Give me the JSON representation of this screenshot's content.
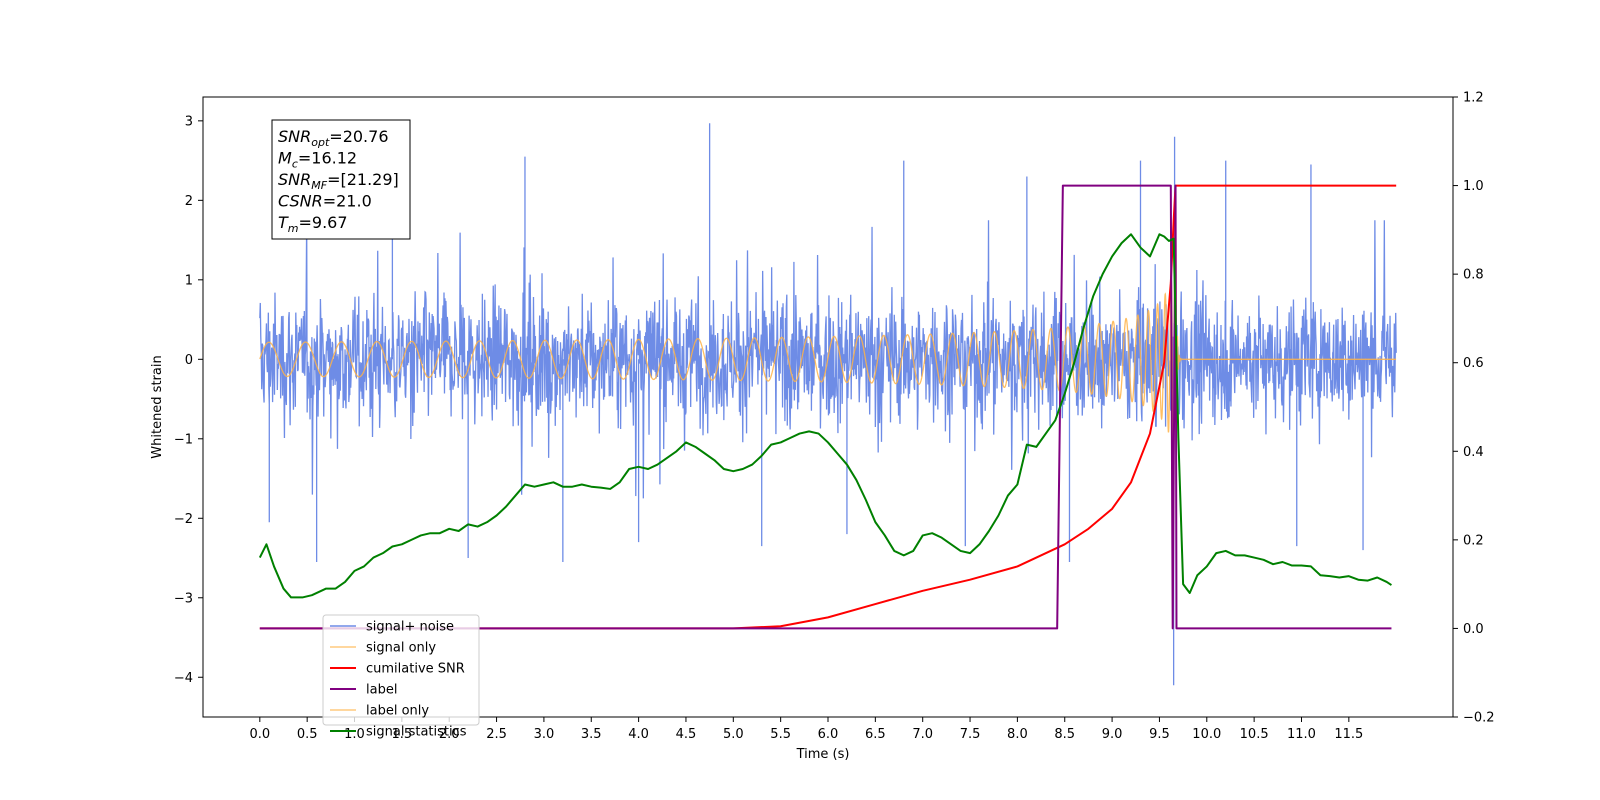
{
  "chart_data": {
    "type": "line",
    "xlabel": "Time (s)",
    "ylabel": "Whitened strain",
    "xlim": [
      -0.6,
      12.6
    ],
    "ylim": [
      -4.5,
      3.3
    ],
    "y2lim": [
      -0.2,
      1.2
    ],
    "grid": false,
    "legend_position": "lower-left",
    "x_ticks": [
      "0.0",
      "0.5",
      "1.0",
      "1.5",
      "2.0",
      "2.5",
      "3.0",
      "3.5",
      "4.0",
      "4.5",
      "5.0",
      "5.5",
      "6.0",
      "6.5",
      "7.0",
      "7.5",
      "8.0",
      "8.5",
      "9.0",
      "9.5",
      "10.0",
      "10.5",
      "11.0",
      "11.5"
    ],
    "y_ticks": [
      "3",
      "2",
      "1",
      "0",
      "−1",
      "−2",
      "−3",
      "−4"
    ],
    "y2_ticks": [
      "1.2",
      "1.0",
      "0.8",
      "0.6",
      "0.4",
      "0.2",
      "0.0",
      "−0.2"
    ],
    "annotation": [
      {
        "sym": "SNR",
        "sub": "opt",
        "val": "=20.76"
      },
      {
        "sym": "M",
        "sub": "c",
        "val": "=16.12"
      },
      {
        "sym": "SNR",
        "sub": "MF",
        "val": "=[21.29]"
      },
      {
        "sym": "CSNR",
        "sub": "",
        "val": "=21.0"
      },
      {
        "sym": "T",
        "sub": "m",
        "val": "=9.67"
      }
    ],
    "series": [
      {
        "name": "signal+ noise",
        "color": "#6e8ce6",
        "axis": "left",
        "kind": "noise",
        "x_range": [
          0.0,
          12.0
        ],
        "band": [
          -1.4,
          1.4
        ],
        "outliers": [
          {
            "x": 0.1,
            "y": -2.05
          },
          {
            "x": 0.6,
            "y": -2.55
          },
          {
            "x": 1.4,
            "y": 2.35
          },
          {
            "x": 2.2,
            "y": -2.5
          },
          {
            "x": 2.8,
            "y": 2.55
          },
          {
            "x": 3.2,
            "y": -2.55
          },
          {
            "x": 4.0,
            "y": -2.3
          },
          {
            "x": 4.75,
            "y": 2.97
          },
          {
            "x": 5.3,
            "y": -2.35
          },
          {
            "x": 6.2,
            "y": -2.2
          },
          {
            "x": 6.8,
            "y": 2.5
          },
          {
            "x": 7.45,
            "y": -2.35
          },
          {
            "x": 8.1,
            "y": 2.3
          },
          {
            "x": 8.55,
            "y": -2.55
          },
          {
            "x": 9.3,
            "y": 2.5
          },
          {
            "x": 9.65,
            "y": -4.1
          },
          {
            "x": 9.66,
            "y": 2.8
          },
          {
            "x": 10.2,
            "y": 2.5
          },
          {
            "x": 10.95,
            "y": -2.35
          },
          {
            "x": 11.1,
            "y": 2.45
          },
          {
            "x": 11.65,
            "y": -2.4
          }
        ]
      },
      {
        "name": "signal only",
        "color": "#ffb347",
        "axis": "left",
        "kind": "chirp",
        "x_range": [
          0.0,
          12.0
        ],
        "merger": 9.67,
        "peak_amplitude": 2.3
      },
      {
        "name": "cumilative SNR",
        "color": "#ff0000",
        "axis": "right",
        "kind": "line",
        "x": [
          0.0,
          5.0,
          5.5,
          6.0,
          6.5,
          7.0,
          7.5,
          8.0,
          8.5,
          8.75,
          9.0,
          9.2,
          9.4,
          9.55,
          9.62,
          9.65,
          9.67,
          12.0
        ],
        "y": [
          0.0,
          0.0,
          0.005,
          0.025,
          0.055,
          0.085,
          0.11,
          0.14,
          0.19,
          0.225,
          0.27,
          0.33,
          0.44,
          0.6,
          0.78,
          0.92,
          1.0,
          1.0
        ]
      },
      {
        "name": "label",
        "color": "#800080",
        "axis": "right",
        "kind": "line",
        "x": [
          0.0,
          8.42,
          8.48,
          9.62,
          9.64,
          9.67,
          9.68,
          11.95
        ],
        "y": [
          0.0,
          0.0,
          1.0,
          1.0,
          0.0,
          1.0,
          0.0,
          0.0
        ]
      },
      {
        "name": "label only",
        "color": "#ffb347",
        "axis": "left",
        "kind": "legend-only"
      },
      {
        "name": "signal statistics",
        "color": "#008000",
        "axis": "right",
        "kind": "line",
        "x": [
          0.0,
          0.07,
          0.15,
          0.25,
          0.33,
          0.45,
          0.55,
          0.7,
          0.8,
          0.9,
          1.0,
          1.1,
          1.2,
          1.3,
          1.4,
          1.5,
          1.6,
          1.7,
          1.8,
          1.9,
          2.0,
          2.1,
          2.2,
          2.3,
          2.4,
          2.5,
          2.6,
          2.7,
          2.8,
          2.9,
          3.0,
          3.1,
          3.2,
          3.3,
          3.4,
          3.5,
          3.6,
          3.7,
          3.8,
          3.9,
          4.0,
          4.1,
          4.2,
          4.3,
          4.4,
          4.5,
          4.6,
          4.7,
          4.8,
          4.9,
          5.0,
          5.1,
          5.2,
          5.3,
          5.4,
          5.5,
          5.6,
          5.7,
          5.8,
          5.9,
          6.0,
          6.1,
          6.2,
          6.3,
          6.4,
          6.5,
          6.6,
          6.7,
          6.8,
          6.9,
          7.0,
          7.1,
          7.2,
          7.3,
          7.4,
          7.5,
          7.6,
          7.7,
          7.8,
          7.9,
          8.0,
          8.1,
          8.2,
          8.3,
          8.4,
          8.5,
          8.6,
          8.7,
          8.8,
          8.9,
          9.0,
          9.1,
          9.2,
          9.3,
          9.4,
          9.5,
          9.55,
          9.6,
          9.65,
          9.7,
          9.75,
          9.82,
          9.9,
          10.0,
          10.1,
          10.2,
          10.3,
          10.4,
          10.5,
          10.6,
          10.7,
          10.8,
          10.9,
          11.0,
          11.1,
          11.2,
          11.3,
          11.4,
          11.5,
          11.6,
          11.7,
          11.8,
          11.9,
          11.95
        ],
        "y": [
          0.16,
          0.19,
          0.14,
          0.09,
          0.07,
          0.07,
          0.075,
          0.09,
          0.09,
          0.105,
          0.13,
          0.14,
          0.16,
          0.17,
          0.185,
          0.19,
          0.2,
          0.21,
          0.215,
          0.215,
          0.225,
          0.22,
          0.235,
          0.23,
          0.24,
          0.255,
          0.275,
          0.3,
          0.325,
          0.32,
          0.325,
          0.33,
          0.32,
          0.32,
          0.325,
          0.32,
          0.318,
          0.315,
          0.33,
          0.36,
          0.365,
          0.36,
          0.37,
          0.385,
          0.4,
          0.42,
          0.41,
          0.395,
          0.38,
          0.36,
          0.355,
          0.36,
          0.37,
          0.39,
          0.415,
          0.42,
          0.43,
          0.44,
          0.445,
          0.44,
          0.42,
          0.395,
          0.37,
          0.335,
          0.29,
          0.24,
          0.21,
          0.175,
          0.165,
          0.175,
          0.21,
          0.215,
          0.205,
          0.19,
          0.175,
          0.17,
          0.19,
          0.22,
          0.255,
          0.3,
          0.325,
          0.415,
          0.41,
          0.44,
          0.47,
          0.53,
          0.6,
          0.68,
          0.75,
          0.8,
          0.84,
          0.87,
          0.89,
          0.86,
          0.84,
          0.89,
          0.885,
          0.875,
          0.88,
          0.43,
          0.1,
          0.08,
          0.12,
          0.14,
          0.17,
          0.175,
          0.165,
          0.165,
          0.16,
          0.155,
          0.145,
          0.15,
          0.142,
          0.142,
          0.14,
          0.12,
          0.118,
          0.115,
          0.118,
          0.11,
          0.108,
          0.115,
          0.105,
          0.098
        ]
      }
    ]
  }
}
